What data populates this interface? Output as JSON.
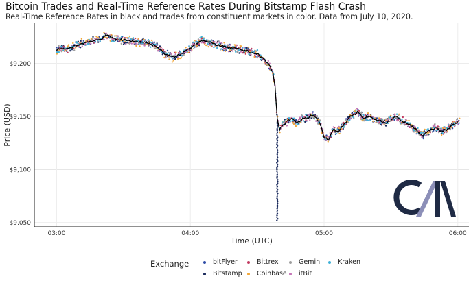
{
  "chart_data": {
    "type": "scatter",
    "title": "Bitcoin Trades and Real-Time Reference Rates During Bitstamp Flash Crash",
    "subtitle": "Real-Time Reference Rates in black and trades from constituent markets in color. Data from July 10, 2020.",
    "xlabel": "Time (UTC)",
    "ylabel": "Price (USD)",
    "x_ticks": [
      "03:00",
      "04:00",
      "05:00",
      "06:00"
    ],
    "y_ticks": [
      "$9,050",
      "$9,100",
      "$9,150",
      "$9,200"
    ],
    "y_tick_values": [
      9050,
      9100,
      9150,
      9200
    ],
    "xlim": [
      "02:50",
      "06:05"
    ],
    "ylim": [
      9046,
      9238
    ],
    "grid": true,
    "legend_placement": "bottom",
    "legend_title": "Exchange",
    "reference_rate": {
      "color": "#000000",
      "points": [
        [
          "03:00",
          9213
        ],
        [
          "03:05",
          9214
        ],
        [
          "03:10",
          9218
        ],
        [
          "03:15",
          9221
        ],
        [
          "03:20",
          9223
        ],
        [
          "03:22",
          9227
        ],
        [
          "03:25",
          9224
        ],
        [
          "03:30",
          9222
        ],
        [
          "03:35",
          9221
        ],
        [
          "03:40",
          9220
        ],
        [
          "03:45",
          9216
        ],
        [
          "03:48",
          9210
        ],
        [
          "03:52",
          9206
        ],
        [
          "03:55",
          9208
        ],
        [
          "03:58",
          9212
        ],
        [
          "04:02",
          9218
        ],
        [
          "04:05",
          9222
        ],
        [
          "04:10",
          9219
        ],
        [
          "04:15",
          9216
        ],
        [
          "04:20",
          9214
        ],
        [
          "04:25",
          9212
        ],
        [
          "04:30",
          9209
        ],
        [
          "04:32",
          9206
        ],
        [
          "04:35",
          9200
        ],
        [
          "04:37",
          9192
        ],
        [
          "04:38",
          9178
        ],
        [
          "04:39",
          9148
        ],
        [
          "04:40",
          9138
        ],
        [
          "04:42",
          9143
        ],
        [
          "04:45",
          9148
        ],
        [
          "04:48",
          9144
        ],
        [
          "04:50",
          9148
        ],
        [
          "04:53",
          9149
        ],
        [
          "04:55",
          9152
        ],
        [
          "04:58",
          9145
        ],
        [
          "05:00",
          9130
        ],
        [
          "05:02",
          9128
        ],
        [
          "05:04",
          9138
        ],
        [
          "05:06",
          9136
        ],
        [
          "05:08",
          9140
        ],
        [
          "05:12",
          9150
        ],
        [
          "05:15",
          9154
        ],
        [
          "05:18",
          9148
        ],
        [
          "05:20",
          9150
        ],
        [
          "05:25",
          9146
        ],
        [
          "05:28",
          9144
        ],
        [
          "05:32",
          9150
        ],
        [
          "05:35",
          9146
        ],
        [
          "05:40",
          9140
        ],
        [
          "05:44",
          9132
        ],
        [
          "05:46",
          9135
        ],
        [
          "05:50",
          9140
        ],
        [
          "05:52",
          9136
        ],
        [
          "05:55",
          9138
        ],
        [
          "05:58",
          9142
        ],
        [
          "06:00",
          9145
        ]
      ]
    },
    "series": [
      {
        "name": "bitFlyer",
        "color": "#2e4ca6",
        "jitter": 3
      },
      {
        "name": "Bitstamp",
        "color": "#1a2a5c",
        "jitter": 3
      },
      {
        "name": "Bittrex",
        "color": "#c23b61",
        "jitter": 3
      },
      {
        "name": "Coinbase",
        "color": "#f2a83a",
        "jitter": 4
      },
      {
        "name": "Gemini",
        "color": "#9e9e9e",
        "jitter": 3
      },
      {
        "name": "itBit",
        "color": "#c678b8",
        "jitter": 3
      },
      {
        "name": "Kraken",
        "color": "#3eb1d8",
        "jitter": 3
      }
    ],
    "annotations": [
      {
        "series": "Bitstamp",
        "time": "04:39",
        "low": 9052,
        "high": 9145
      }
    ]
  },
  "logo_text": "C/M"
}
